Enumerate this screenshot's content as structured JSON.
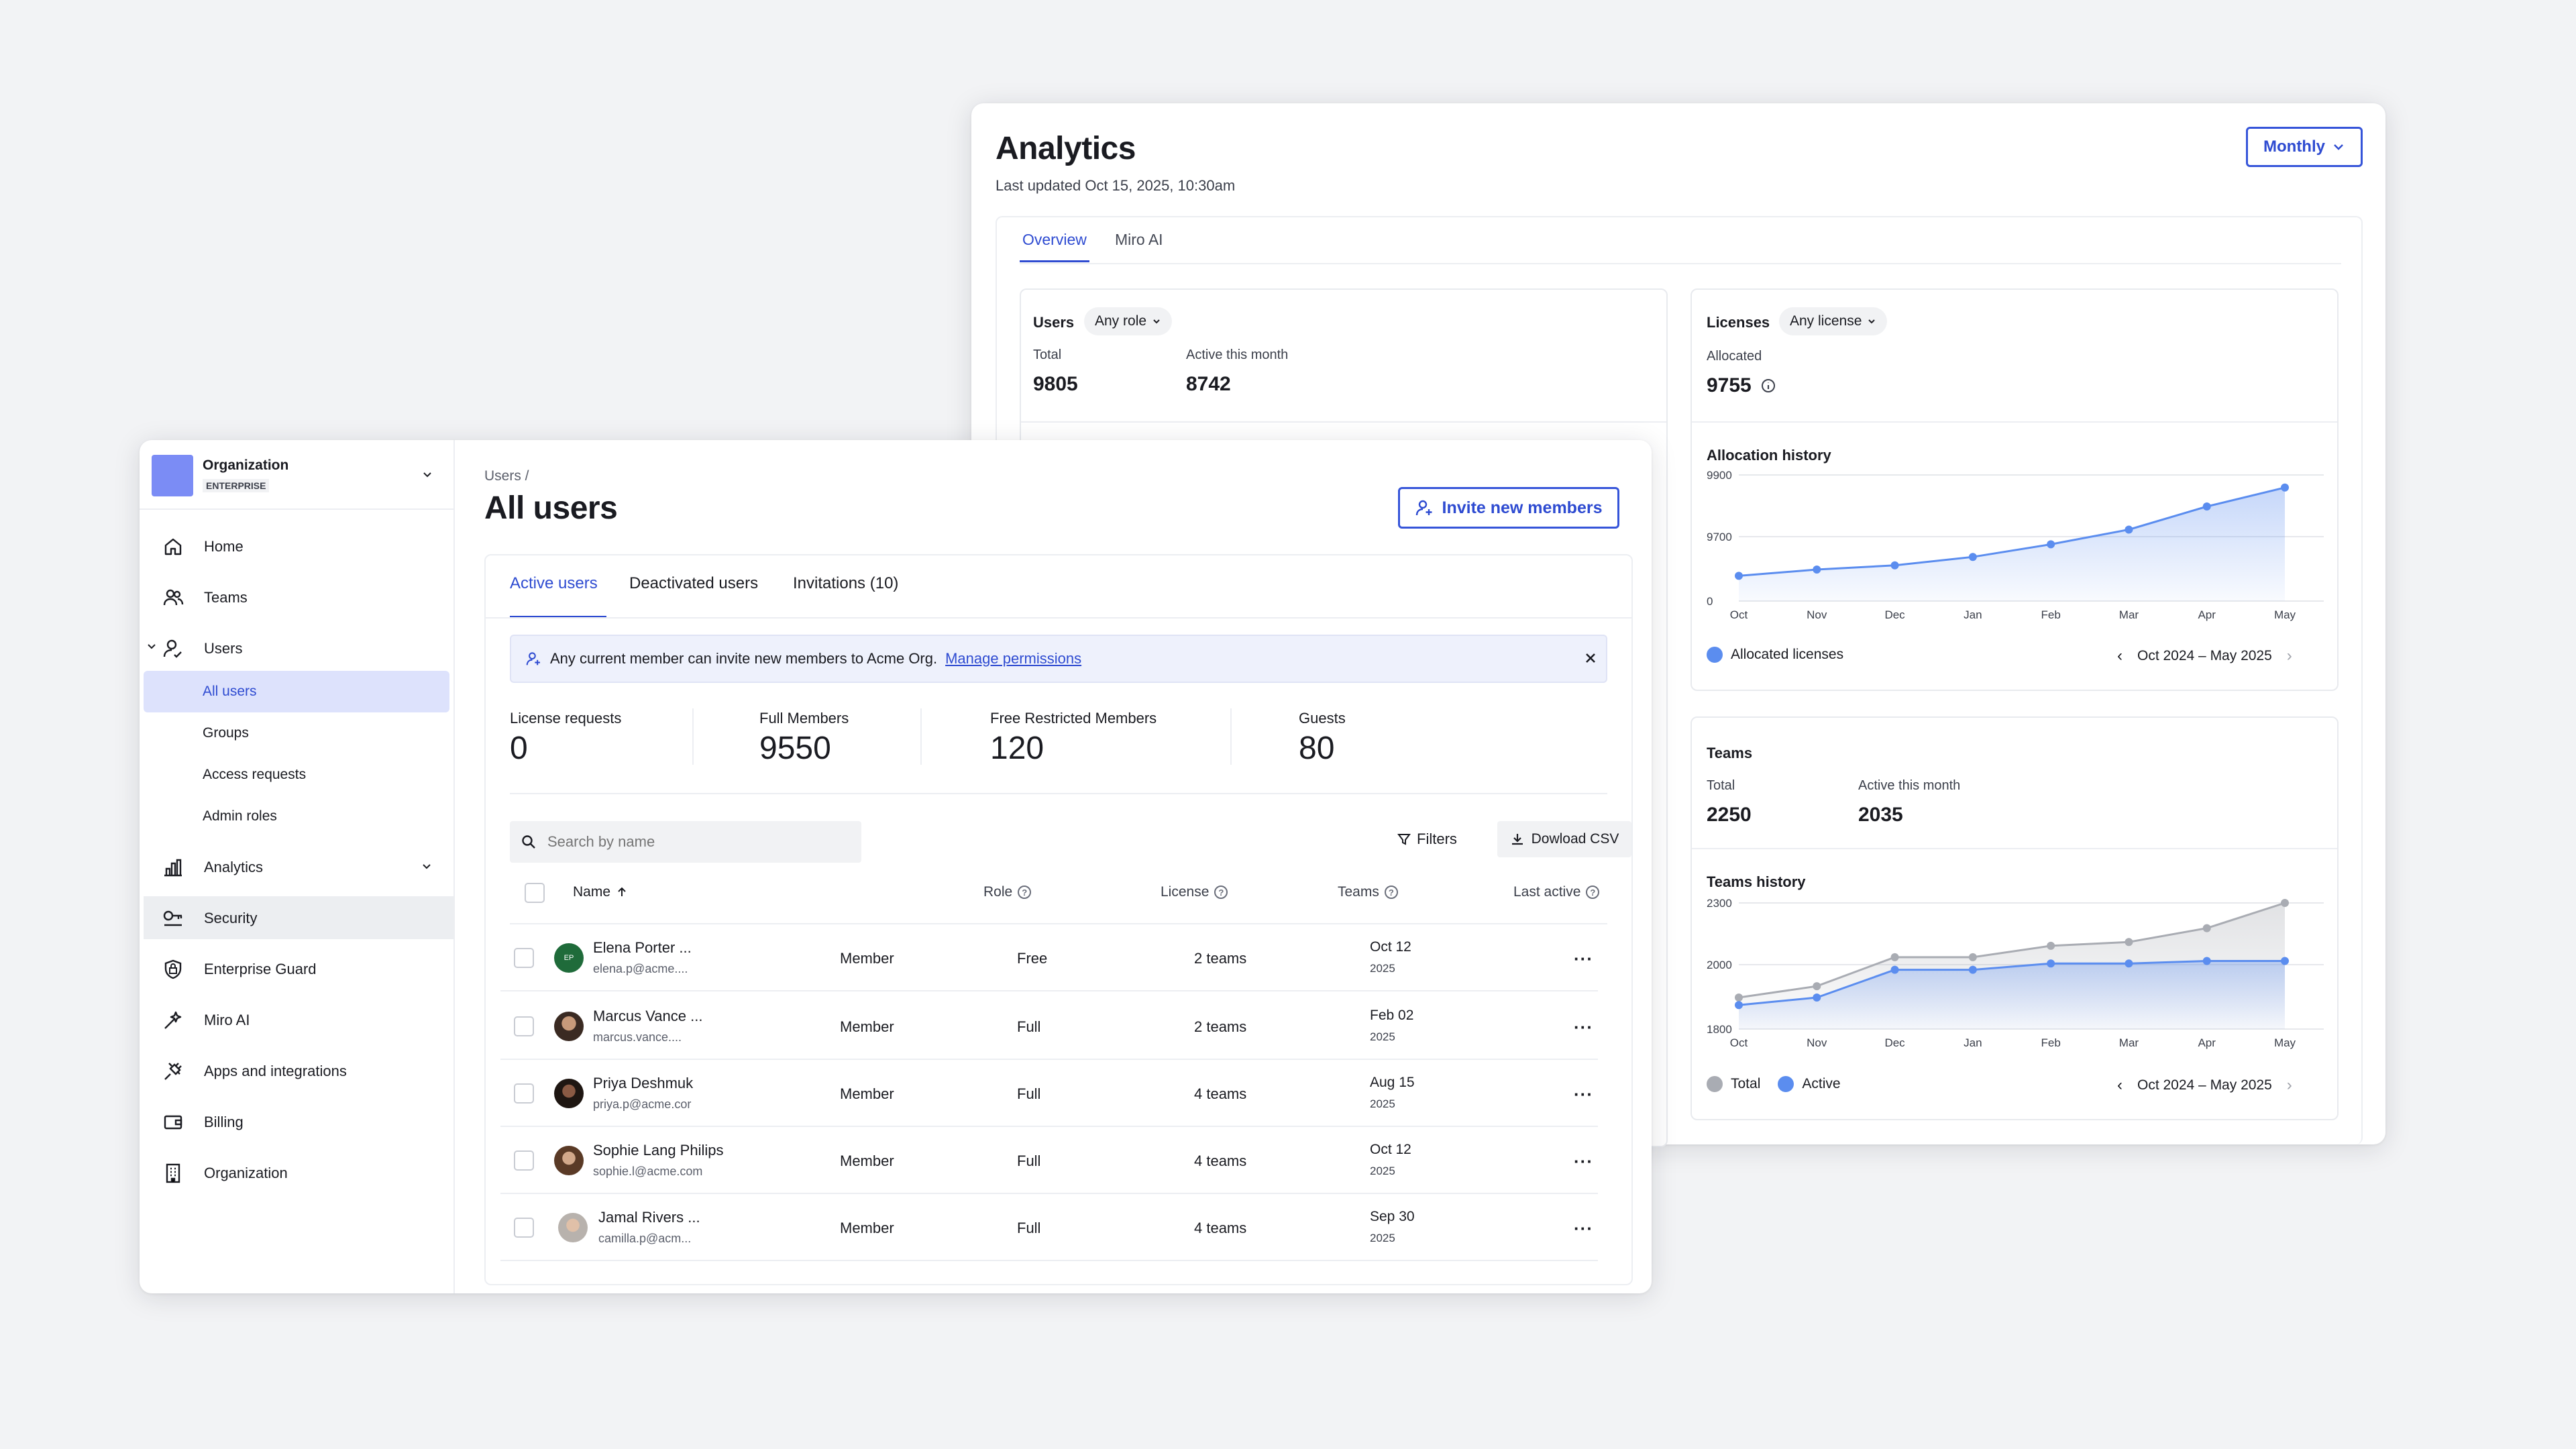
{
  "analytics": {
    "title": "Analytics",
    "updated": "Last updated Oct 15, 2025, 10:30am",
    "period": "Monthly",
    "tabs": [
      "Overview",
      "Miro AI"
    ],
    "users_card": {
      "title": "Users",
      "filter": "Any role",
      "total_label": "Total",
      "total": "9805",
      "active_label": "Active this month",
      "active": "8742"
    },
    "licenses_card": {
      "title": "Licenses",
      "filter": "Any license",
      "allocated_label": "Allocated",
      "allocated": "9755"
    },
    "allocation_history": {
      "title": "Allocation history",
      "legend": "Allocated licenses",
      "range": "Oct 2024 – May 2025"
    },
    "teams_card": {
      "title": "Teams",
      "total_label": "Total",
      "total": "2250",
      "active_label": "Active this month",
      "active": "2035"
    },
    "teams_history": {
      "title": "Teams history",
      "legend_total": "Total",
      "legend_active": "Active",
      "range": "Oct 2024 – May 2025"
    },
    "colors": {
      "accent": "#2e4bd1",
      "series_blue": "#5b8def",
      "series_gray": "#a9acb3"
    }
  },
  "chart_data": [
    {
      "type": "area",
      "title": "Allocation history",
      "categories": [
        "Oct",
        "Nov",
        "Dec",
        "Jan",
        "Feb",
        "Mar",
        "Apr",
        "May"
      ],
      "y_ticks": [
        "9900",
        "9700",
        "0"
      ],
      "series": [
        {
          "name": "Allocated licenses",
          "values": [
            9660,
            9675,
            9685,
            9705,
            9735,
            9770,
            9825,
            9870
          ]
        }
      ],
      "ylim": [
        9600,
        9900
      ]
    },
    {
      "type": "area",
      "title": "Teams history",
      "categories": [
        "Oct",
        "Nov",
        "Dec",
        "Jan",
        "Feb",
        "Mar",
        "Apr",
        "May"
      ],
      "y_ticks": [
        "2300",
        "2000",
        "1800"
      ],
      "series": [
        {
          "name": "Total",
          "values": [
            1925,
            1970,
            2085,
            2085,
            2130,
            2145,
            2200,
            2300
          ]
        },
        {
          "name": "Active",
          "values": [
            1895,
            1925,
            2035,
            2035,
            2060,
            2060,
            2070,
            2070
          ]
        }
      ],
      "ylim": [
        1800,
        2300
      ]
    }
  ],
  "sidebar": {
    "org_name": "Organization",
    "org_plan": "ENTERPRISE",
    "items": {
      "home": "Home",
      "teams": "Teams",
      "users": "Users",
      "all_users": "All users",
      "groups": "Groups",
      "access_requests": "Access requests",
      "admin_roles": "Admin roles",
      "analytics": "Analytics",
      "security": "Security",
      "enterprise_guard": "Enterprise Guard",
      "miro_ai": "Miro AI",
      "apps": "Apps and integrations",
      "billing": "Billing",
      "organization": "Organization"
    }
  },
  "users_page": {
    "breadcrumb": "Users /",
    "title": "All users",
    "invite": "Invite new members",
    "tabs": {
      "active": "Active users",
      "deactivated": "Deactivated users",
      "invitations": "Invitations (10)"
    },
    "banner": {
      "text": "Any current member can invite new members to Acme Org.",
      "link": "Manage permissions"
    },
    "stats": [
      {
        "label": "License requests",
        "value": "0"
      },
      {
        "label": "Full Members",
        "value": "9550"
      },
      {
        "label": "Free Restricted Members",
        "value": "120"
      },
      {
        "label": "Guests",
        "value": "80"
      }
    ],
    "search_placeholder": "Search by name",
    "filters": "Filters",
    "download": "Dowload CSV",
    "columns": {
      "name": "Name",
      "role": "Role",
      "license": "License",
      "teams": "Teams",
      "last_active": "Last active"
    },
    "rows": [
      {
        "name": "Elena Porter ...",
        "email": "elena.p@acme....",
        "initials": "EP",
        "role": "Member",
        "license": "Free",
        "teams": "2 teams",
        "date": "Oct 12",
        "year": "2025"
      },
      {
        "name": "Marcus Vance ...",
        "email": "marcus.vance....",
        "initials": "",
        "role": "Member",
        "license": "Full",
        "teams": "2 teams",
        "date": "Feb 02",
        "year": "2025"
      },
      {
        "name": "Priya Deshmuk",
        "email": "priya.p@acme.cor",
        "initials": "",
        "role": "Member",
        "license": "Full",
        "teams": "4 teams",
        "date": "Aug 15",
        "year": "2025"
      },
      {
        "name": "Sophie Lang Philips",
        "email": "sophie.l@acme.com",
        "initials": "",
        "role": "Member",
        "license": "Full",
        "teams": "4 teams",
        "date": "Oct 12",
        "year": "2025"
      },
      {
        "name": "Jamal Rivers ...",
        "email": "camilla.p@acm...",
        "initials": "",
        "role": "Member",
        "license": "Full",
        "teams": "4 teams",
        "date": "Sep 30",
        "year": "2025"
      }
    ]
  }
}
